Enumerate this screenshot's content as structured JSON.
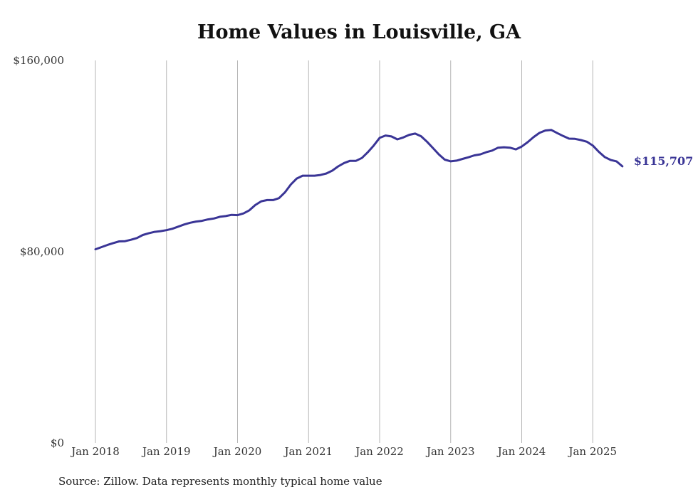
{
  "chart_data": {
    "type": "line",
    "title": "Home Values in Louisville, GA",
    "source": "Source: Zillow. Data represents monthly typical home value",
    "xlabel": "",
    "ylabel": "",
    "ylim": [
      0,
      160000
    ],
    "y_ticks": [
      0,
      80000,
      160000
    ],
    "y_tick_labels": [
      "$0",
      "$80,000",
      "$160,000"
    ],
    "x_ticks": [
      "2018-01",
      "2019-01",
      "2020-01",
      "2021-01",
      "2022-01",
      "2023-01",
      "2024-01",
      "2025-01"
    ],
    "x_tick_labels": [
      "Jan 2018",
      "Jan 2019",
      "Jan 2020",
      "Jan 2021",
      "Jan 2022",
      "Jan 2023",
      "Jan 2024",
      "Jan 2025"
    ],
    "grid": {
      "vertical": true,
      "horizontal": false
    },
    "series_color": "#3a3596",
    "end_label": "$115,707",
    "series": [
      {
        "x": [
          "2018-01",
          "2018-02",
          "2018-03",
          "2018-04",
          "2018-05",
          "2018-06",
          "2018-07",
          "2018-08",
          "2018-09",
          "2018-10",
          "2018-11",
          "2018-12",
          "2019-01",
          "2019-02",
          "2019-03",
          "2019-04",
          "2019-05",
          "2019-06",
          "2019-07",
          "2019-08",
          "2019-09",
          "2019-10",
          "2019-11",
          "2019-12",
          "2020-01",
          "2020-02",
          "2020-03",
          "2020-04",
          "2020-05",
          "2020-06",
          "2020-07",
          "2020-08",
          "2020-09",
          "2020-10",
          "2020-11",
          "2020-12",
          "2021-01",
          "2021-02",
          "2021-03",
          "2021-04",
          "2021-05",
          "2021-06",
          "2021-07",
          "2021-08",
          "2021-09",
          "2021-10",
          "2021-11",
          "2021-12",
          "2022-01",
          "2022-02",
          "2022-03",
          "2022-04",
          "2022-05",
          "2022-06",
          "2022-07",
          "2022-08",
          "2022-09",
          "2022-10",
          "2022-11",
          "2022-12",
          "2023-01",
          "2023-02",
          "2023-03",
          "2023-04",
          "2023-05",
          "2023-06",
          "2023-07",
          "2023-08",
          "2023-09",
          "2023-10",
          "2023-11",
          "2023-12",
          "2024-01",
          "2024-02",
          "2024-03",
          "2024-04",
          "2024-05",
          "2024-06",
          "2024-07",
          "2024-08",
          "2024-09",
          "2024-10",
          "2024-11",
          "2024-12",
          "2025-01",
          "2025-02",
          "2025-03",
          "2025-04",
          "2025-05",
          "2025-06"
        ],
        "values": [
          81000,
          81900,
          82800,
          83600,
          84300,
          84400,
          85000,
          85700,
          87000,
          87700,
          88300,
          88600,
          89000,
          89600,
          90500,
          91400,
          92100,
          92600,
          92900,
          93500,
          93900,
          94600,
          94900,
          95400,
          95300,
          96000,
          97300,
          99500,
          101100,
          101600,
          101600,
          102400,
          104800,
          108100,
          110600,
          111800,
          111800,
          111800,
          112100,
          112700,
          113900,
          115700,
          117100,
          118000,
          118000,
          119200,
          121600,
          124400,
          127600,
          128600,
          128200,
          127000,
          127800,
          128900,
          129400,
          128300,
          126000,
          123400,
          120700,
          118500,
          117800,
          118100,
          118800,
          119500,
          120300,
          120700,
          121600,
          122300,
          123500,
          123700,
          123500,
          122800,
          124000,
          125800,
          127900,
          129700,
          130700,
          130900,
          129600,
          128400,
          127300,
          127200,
          126700,
          126000,
          124400,
          121800,
          119600,
          118400,
          117800,
          115707
        ]
      }
    ]
  }
}
